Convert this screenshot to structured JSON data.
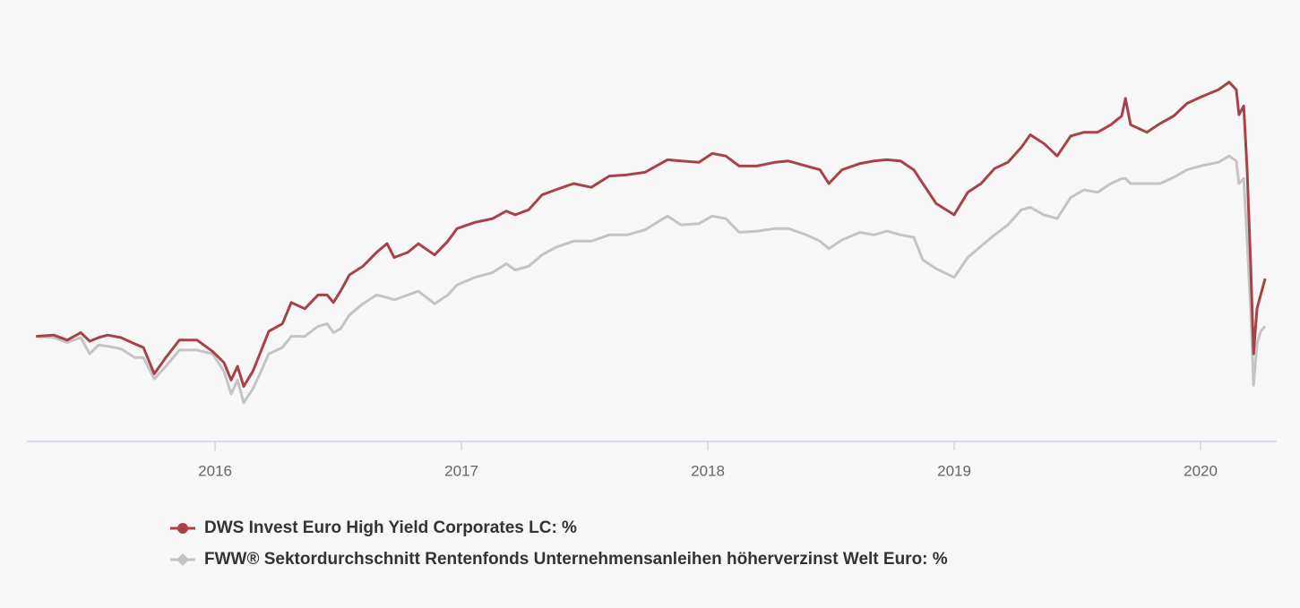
{
  "chart_data": {
    "type": "line",
    "x": [
      2015.273,
      2015.345,
      2015.4,
      2015.455,
      2015.491,
      2015.527,
      2015.564,
      2015.618,
      2015.673,
      2015.709,
      2015.753,
      2015.8,
      2015.855,
      2015.927,
      2015.989,
      2016.036,
      2016.065,
      2016.091,
      2016.116,
      2016.153,
      2016.182,
      2016.218,
      2016.273,
      2016.309,
      2016.364,
      2016.418,
      2016.455,
      2016.48,
      2016.509,
      2016.545,
      2016.6,
      2016.655,
      2016.698,
      2016.727,
      2016.782,
      2016.825,
      2016.891,
      2016.945,
      2016.982,
      2017.055,
      2017.127,
      2017.182,
      2017.218,
      2017.273,
      2017.327,
      2017.382,
      2017.455,
      2017.527,
      2017.6,
      2017.673,
      2017.745,
      2017.836,
      2017.891,
      2017.964,
      2018.018,
      2018.073,
      2018.127,
      2018.2,
      2018.273,
      2018.327,
      2018.4,
      2018.455,
      2018.491,
      2018.545,
      2018.618,
      2018.673,
      2018.727,
      2018.782,
      2018.836,
      2018.873,
      2018.927,
      2019.0,
      2019.055,
      2019.109,
      2019.164,
      2019.218,
      2019.273,
      2019.309,
      2019.364,
      2019.418,
      2019.473,
      2019.527,
      2019.582,
      2019.636,
      2019.68,
      2019.695,
      2019.716,
      2019.782,
      2019.836,
      2019.891,
      2019.945,
      2020.0,
      2020.073,
      2020.116,
      2020.145,
      2020.156,
      2020.175,
      2020.189,
      2020.204,
      2020.215,
      2020.229,
      2020.244,
      2020.262
    ],
    "series": [
      {
        "name": "DWS Invest Euro High Yield Corporates LC: %",
        "color": "#a8424a",
        "values": [
          0,
          0.1,
          -0.3,
          0.3,
          -0.4,
          -0.1,
          0.1,
          -0.1,
          -0.6,
          -0.9,
          -3.0,
          -1.7,
          -0.3,
          -0.3,
          -1.2,
          -2.1,
          -3.5,
          -2.4,
          -4.0,
          -2.8,
          -1.4,
          0.4,
          1.0,
          2.7,
          2.2,
          3.3,
          3.3,
          2.7,
          3.6,
          4.9,
          5.6,
          6.7,
          7.4,
          6.3,
          6.7,
          7.4,
          6.5,
          7.6,
          8.6,
          9.1,
          9.4,
          10.0,
          9.7,
          10.1,
          11.3,
          11.7,
          12.2,
          11.9,
          12.8,
          12.9,
          13.1,
          14.1,
          14.0,
          13.9,
          14.6,
          14.4,
          13.6,
          13.6,
          13.9,
          14.0,
          13.6,
          13.3,
          12.2,
          13.3,
          13.8,
          14.0,
          14.1,
          14.0,
          13.3,
          12.2,
          10.6,
          9.7,
          11.5,
          12.2,
          13.4,
          13.9,
          15.1,
          16.1,
          15.4,
          14.4,
          16.0,
          16.3,
          16.3,
          16.9,
          17.6,
          19.0,
          16.9,
          16.3,
          17.0,
          17.6,
          18.6,
          19.1,
          19.7,
          20.3,
          19.7,
          17.7,
          18.4,
          13.3,
          5.4,
          -1.4,
          2.2,
          3.3,
          4.6
        ]
      },
      {
        "name": "FWW® Sektordurchschnitt Rentenfonds Unternehmensanleihen höherverzinst Welt Euro: %",
        "color": "#c4c4c4",
        "values": [
          0,
          -0.1,
          -0.5,
          -0.1,
          -1.4,
          -0.7,
          -0.8,
          -1.0,
          -1.7,
          -1.7,
          -3.4,
          -2.4,
          -1.1,
          -1.1,
          -1.4,
          -2.8,
          -4.6,
          -3.5,
          -5.3,
          -4.2,
          -3.0,
          -1.4,
          -0.9,
          0,
          0,
          0.8,
          1.0,
          0.3,
          0.6,
          1.7,
          2.6,
          3.3,
          3.1,
          2.9,
          3.3,
          3.6,
          2.6,
          3.3,
          4.1,
          4.7,
          5.1,
          5.8,
          5.3,
          5.6,
          6.5,
          7.1,
          7.6,
          7.6,
          8.1,
          8.1,
          8.5,
          9.6,
          8.9,
          9.0,
          9.6,
          9.4,
          8.3,
          8.4,
          8.6,
          8.6,
          8.1,
          7.6,
          7.0,
          7.7,
          8.3,
          8.1,
          8.4,
          8.1,
          7.9,
          6.1,
          5.4,
          4.7,
          6.3,
          7.2,
          8.1,
          8.9,
          10.1,
          10.3,
          9.7,
          9.4,
          11.1,
          11.7,
          11.5,
          12.2,
          12.6,
          12.6,
          12.2,
          12.2,
          12.2,
          12.7,
          13.3,
          13.6,
          13.9,
          14.4,
          14.0,
          12.2,
          12.6,
          7.6,
          1.9,
          -3.9,
          -0.6,
          0.4,
          0.8
        ]
      }
    ],
    "xlim": [
      2015.236,
      2020.309
    ],
    "xticks": [
      2016,
      2017,
      2018,
      2019,
      2020
    ],
    "ylim": [
      -8.4,
      24
    ]
  }
}
